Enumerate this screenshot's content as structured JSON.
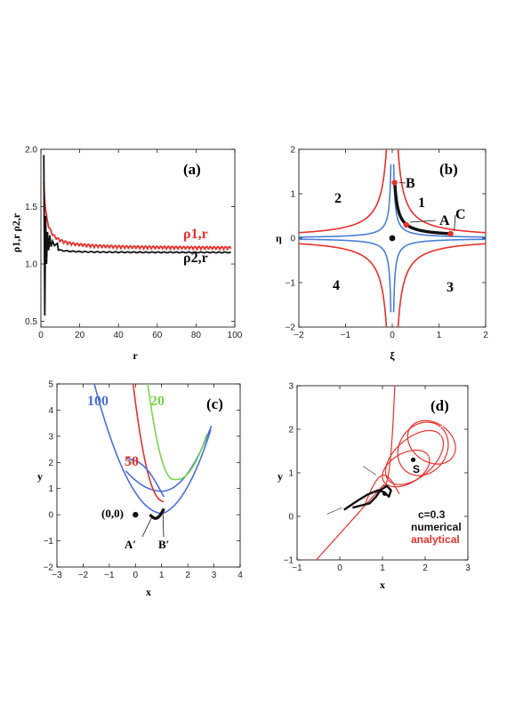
{
  "chart_data": [
    {
      "id": "a",
      "type": "line",
      "panel_label": "(a)",
      "xlabel": "r",
      "ylabel": "ρ1,r  ρ2,r",
      "xlim": [
        0,
        100
      ],
      "ylim": [
        0.45,
        2.0
      ],
      "xticks": [
        "0",
        "20",
        "40",
        "60",
        "80",
        "100"
      ],
      "yticks": [
        "0.5",
        "1.0",
        "1.5",
        "2.0"
      ],
      "series": [
        {
          "name": "ρ1,r",
          "color": "#e8302a",
          "asymptote": 1.12,
          "oscillation": 0.025
        },
        {
          "name": "ρ2,r",
          "color": "#111111",
          "asymptote": 1.1,
          "oscillation": 0.004
        }
      ]
    },
    {
      "id": "b",
      "type": "line",
      "panel_label": "(b)",
      "xlabel": "ξ",
      "ylabel": "η",
      "xlim": [
        -2,
        2
      ],
      "ylim": [
        -2,
        2
      ],
      "xticks": [
        "−2",
        "−1",
        "0",
        "1",
        "2"
      ],
      "yticks": [
        "−2",
        "−1",
        "0",
        "1",
        "2"
      ],
      "hyperbola_constants": [
        {
          "c": 0.25,
          "color": "#e8302a"
        },
        {
          "c": 0.05,
          "color": "#4a7fd6"
        }
      ],
      "region_labels": [
        "1",
        "2",
        "3",
        "4"
      ],
      "points": [
        {
          "label": "A",
          "x": 0.3,
          "y": 0.3
        },
        {
          "label": "B",
          "x": 0.05,
          "y": 1.25
        },
        {
          "label": "C",
          "x": 1.25,
          "y": 0.1
        }
      ],
      "origin_dot": [
        0,
        0
      ]
    },
    {
      "id": "c",
      "type": "line",
      "panel_label": "(c)",
      "xlabel": "x",
      "ylabel": "y",
      "xlim": [
        -3,
        4
      ],
      "ylim": [
        -2,
        5
      ],
      "xticks": [
        "−3",
        "−2",
        "−1",
        "0",
        "1",
        "2",
        "3",
        "4"
      ],
      "yticks": [
        "−2",
        "−1",
        "0",
        "1",
        "2",
        "3",
        "4",
        "5"
      ],
      "series": [
        {
          "name": "100",
          "color": "#4a6fd6"
        },
        {
          "name": "50",
          "color": "#e8302a"
        },
        {
          "name": "20",
          "color": "#7ad64a"
        }
      ],
      "annotations": [
        "(0,0)",
        "A′",
        "B′"
      ]
    },
    {
      "id": "d",
      "type": "line",
      "panel_label": "(d)",
      "xlabel": "x",
      "ylabel": "y",
      "xlim": [
        -1,
        3
      ],
      "ylim": [
        -1,
        3
      ],
      "xticks": [
        "−1",
        "0",
        "1",
        "2",
        "3"
      ],
      "yticks": [
        "−1",
        "0",
        "1",
        "2",
        "3"
      ],
      "series": [
        {
          "name": "numerical",
          "color": "#111111"
        },
        {
          "name": "analytical",
          "color": "#e8302a"
        }
      ],
      "legend": [
        "c=0.3",
        "numerical",
        "analytical"
      ],
      "annotations": [
        "S"
      ]
    }
  ]
}
